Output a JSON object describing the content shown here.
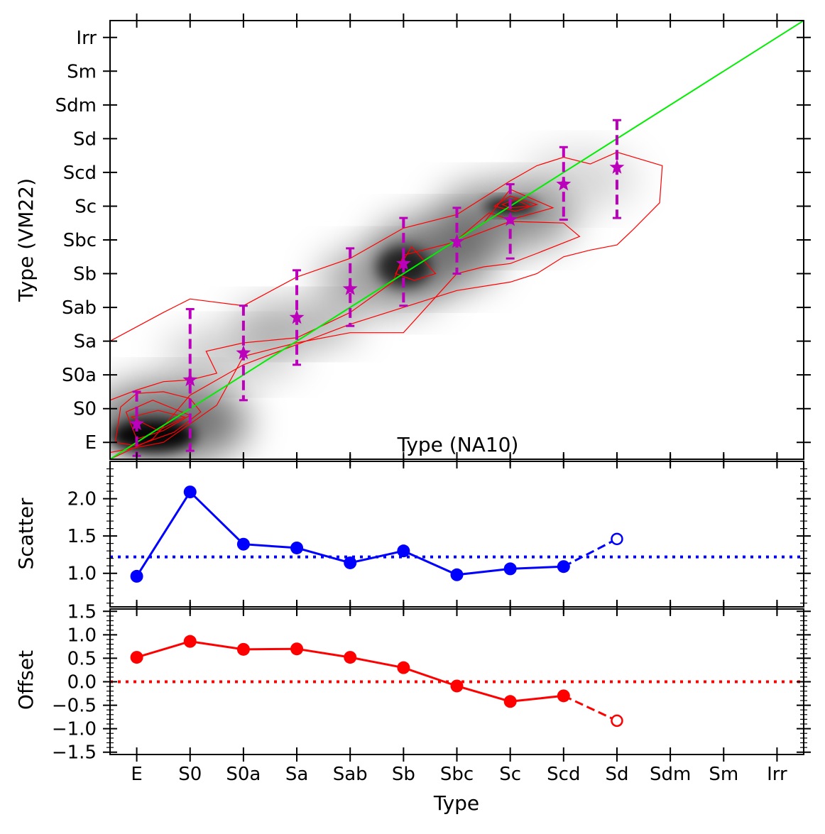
{
  "chart_data": [
    {
      "type": "scatter",
      "panel": "top",
      "ylabel": "Type (VM22)",
      "inner_label": "Type (NA10)",
      "categories": [
        "E",
        "S0",
        "S0a",
        "Sa",
        "Sab",
        "Sb",
        "Sbc",
        "Sc",
        "Scd",
        "Sd",
        "Sdm",
        "Sm",
        "Irr"
      ],
      "xlim": [
        -0.5,
        12.5
      ],
      "ylim": [
        -0.5,
        12.5
      ],
      "one_to_one_line": {
        "color": "#00ee00"
      },
      "density_colormap": "greys",
      "contour_color": "#ff0000",
      "series": [
        {
          "name": "",
          "color": "#bb00bb",
          "marker": "star",
          "x": [
            0,
            1,
            2,
            3,
            4,
            5,
            6,
            7,
            8,
            9
          ],
          "y": [
            0.55,
            1.85,
            2.65,
            3.7,
            4.55,
            5.3,
            5.95,
            6.6,
            7.65,
            8.15
          ],
          "err_low": [
            0.95,
            2.1,
            1.4,
            1.4,
            1.1,
            1.25,
            0.95,
            1.15,
            1.05,
            1.5
          ],
          "err_high": [
            0.95,
            2.1,
            1.4,
            1.4,
            1.2,
            1.35,
            1.0,
            1.05,
            1.1,
            1.4
          ]
        }
      ]
    },
    {
      "type": "line",
      "panel": "middle",
      "ylabel": "Scatter",
      "ylim": [
        0.55,
        2.5
      ],
      "yticks": [
        "1.0",
        "1.5",
        "2.0"
      ],
      "reference_line": {
        "y": 1.22,
        "style": "dotted",
        "color": "#0000ff"
      },
      "series": [
        {
          "name": "",
          "color": "#0000ff",
          "x": [
            0,
            1,
            2,
            3,
            4,
            5,
            6,
            7,
            8,
            9
          ],
          "y": [
            0.96,
            2.09,
            1.39,
            1.34,
            1.14,
            1.3,
            0.98,
            1.06,
            1.09,
            1.46
          ],
          "open_last_point": true
        }
      ]
    },
    {
      "type": "line",
      "panel": "bottom",
      "xlabel": "Type",
      "ylabel": "Offset",
      "ylim": [
        -1.55,
        1.55
      ],
      "yticks": [
        "−1.5",
        "−1.0",
        "−0.5",
        "0.0",
        "0.5",
        "1.0",
        "1.5"
      ],
      "reference_line": {
        "y": 0.0,
        "style": "dotted",
        "color": "#ff0000"
      },
      "categories": [
        "E",
        "S0",
        "S0a",
        "Sa",
        "Sab",
        "Sb",
        "Sbc",
        "Sc",
        "Scd",
        "Sd",
        "Sdm",
        "Sm",
        "Irr"
      ],
      "series": [
        {
          "name": "",
          "color": "#ff0000",
          "x": [
            0,
            1,
            2,
            3,
            4,
            5,
            6,
            7,
            8,
            9
          ],
          "y": [
            0.52,
            0.86,
            0.69,
            0.7,
            0.52,
            0.3,
            -0.09,
            -0.42,
            -0.3,
            -0.83
          ],
          "open_last_point": true
        }
      ]
    }
  ]
}
